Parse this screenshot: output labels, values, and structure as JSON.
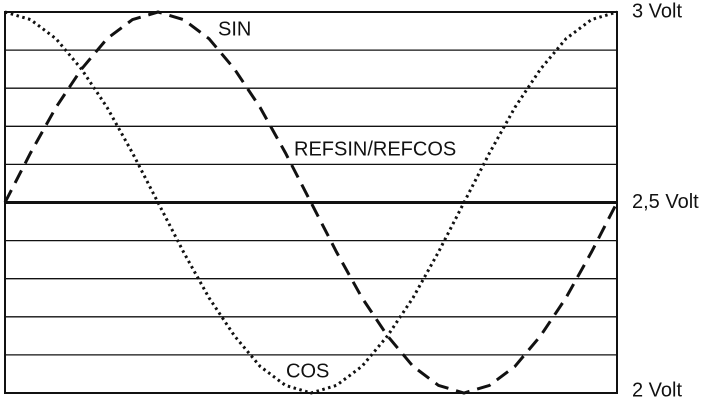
{
  "chart_data": {
    "type": "line",
    "x": [
      0,
      15,
      30,
      45,
      60,
      75,
      90,
      105,
      120,
      135,
      150,
      165,
      180,
      195,
      210,
      225,
      240,
      255,
      270,
      285,
      300,
      315,
      330,
      345,
      360
    ],
    "xlim": [
      0,
      360
    ],
    "series": [
      {
        "name": "SIN",
        "color": "#111111",
        "dash": "dashed",
        "values": [
          2.5,
          2.63,
          2.75,
          2.85,
          2.93,
          2.98,
          3,
          2.98,
          2.93,
          2.85,
          2.75,
          2.63,
          2.5,
          2.37,
          2.25,
          2.15,
          2.07,
          2.02,
          2,
          2.02,
          2.07,
          2.15,
          2.25,
          2.37,
          2.5
        ]
      },
      {
        "name": "COS",
        "color": "#111111",
        "dash": "dotted",
        "values": [
          3,
          2.98,
          2.93,
          2.85,
          2.75,
          2.63,
          2.5,
          2.37,
          2.25,
          2.15,
          2.07,
          2.02,
          2,
          2.02,
          2.07,
          2.15,
          2.25,
          2.37,
          2.5,
          2.63,
          2.75,
          2.85,
          2.93,
          2.98,
          3
        ]
      }
    ],
    "annotations": [
      "REFSIN/REFCOS"
    ],
    "ylim": [
      2,
      3
    ],
    "yticks": [
      {
        "value": 3,
        "label": "3 Volt"
      },
      {
        "value": 2.5,
        "label": "2,5 Volt"
      },
      {
        "value": 2,
        "label": "2 Volt"
      }
    ],
    "minor_yticks": [
      2.1,
      2.2,
      2.3,
      2.4,
      2.6,
      2.7,
      2.8,
      2.9
    ],
    "grid": true
  }
}
